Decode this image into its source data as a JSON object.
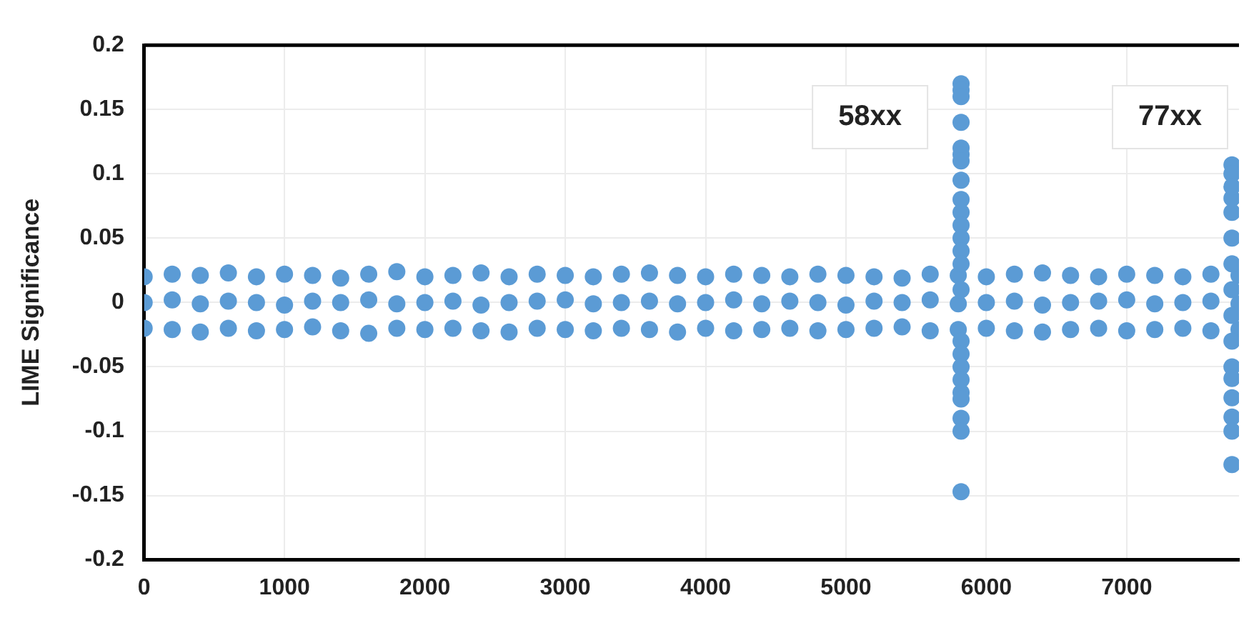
{
  "chart_data": {
    "type": "scatter",
    "ylabel": "LIME Significance",
    "color": "#5b9bd5",
    "marker": "circle",
    "grid": true,
    "legend": false,
    "xlim": [
      0,
      7800
    ],
    "xticks": [
      0,
      1000,
      2000,
      3000,
      4000,
      5000,
      6000,
      7000
    ],
    "ylim": [
      -0.2,
      0.2
    ],
    "yticks": [
      -0.2,
      -0.15,
      -0.1,
      -0.05,
      0,
      0.05,
      0.1,
      0.15,
      0.2
    ],
    "annotations": [
      "58xx",
      "77xx"
    ],
    "x": [
      0,
      200,
      400,
      600,
      800,
      1000,
      1200,
      1400,
      1600,
      1800,
      2000,
      2200,
      2400,
      2600,
      2800,
      3000,
      3200,
      3400,
      3600,
      3800,
      4000,
      4200,
      4400,
      4600,
      4800,
      5000,
      5200,
      5400,
      5600,
      5800,
      6000,
      6200,
      6400,
      6600,
      6800,
      7000,
      7200,
      7400,
      7600,
      7800,
      0,
      200,
      400,
      600,
      800,
      1000,
      1200,
      1400,
      1600,
      1800,
      2000,
      2200,
      2400,
      2600,
      2800,
      3000,
      3200,
      3400,
      3600,
      3800,
      4000,
      4200,
      4400,
      4600,
      4800,
      5000,
      5200,
      5400,
      5600,
      5800,
      6000,
      6200,
      6400,
      6600,
      6800,
      7000,
      7200,
      7400,
      7600,
      7800,
      0,
      200,
      400,
      600,
      800,
      1000,
      1200,
      1400,
      1600,
      1800,
      2000,
      2200,
      2400,
      2600,
      2800,
      3000,
      3200,
      3400,
      3600,
      3800,
      4000,
      4200,
      4400,
      4600,
      4800,
      5000,
      5200,
      5400,
      5600,
      5800,
      6000,
      6200,
      6400,
      6600,
      6800,
      7000,
      7200,
      7400,
      7600,
      7800,
      5820,
      5820,
      5820,
      5820,
      5820,
      5820,
      5820,
      5820,
      5820,
      5820,
      5820,
      5820,
      5820,
      5820,
      5820,
      5820,
      5820,
      5820,
      5820,
      5820,
      5820,
      5820,
      5820,
      5820,
      7750,
      7750,
      7750,
      7750,
      7750,
      7750,
      7750,
      7750,
      7750,
      7750,
      7750,
      7750,
      7750,
      7750,
      7750,
      7750
    ],
    "values": [
      0.02,
      0.022,
      0.021,
      0.023,
      0.02,
      0.022,
      0.021,
      0.019,
      0.022,
      0.024,
      0.02,
      0.021,
      0.023,
      0.02,
      0.022,
      0.021,
      0.02,
      0.022,
      0.023,
      0.021,
      0.02,
      0.022,
      0.021,
      0.02,
      0.022,
      0.021,
      0.02,
      0.019,
      0.022,
      0.021,
      0.02,
      0.022,
      0.023,
      0.021,
      0.02,
      0.022,
      0.021,
      0.02,
      0.022,
      0.021,
      0,
      0.002,
      -0.001,
      0.001,
      0,
      -0.002,
      0.001,
      0,
      0.002,
      -0.001,
      0,
      0.001,
      -0.002,
      0,
      0.001,
      0.002,
      -0.001,
      0,
      0.001,
      -0.001,
      0,
      0.002,
      -0.001,
      0.001,
      0,
      -0.002,
      0.001,
      0,
      0.002,
      -0.001,
      0,
      0.001,
      -0.002,
      0,
      0.001,
      0.002,
      -0.001,
      0,
      0.001,
      -0.001,
      -0.02,
      -0.021,
      -0.023,
      -0.02,
      -0.022,
      -0.021,
      -0.019,
      -0.022,
      -0.024,
      -0.02,
      -0.021,
      -0.02,
      -0.022,
      -0.023,
      -0.02,
      -0.021,
      -0.022,
      -0.02,
      -0.021,
      -0.023,
      -0.02,
      -0.022,
      -0.021,
      -0.02,
      -0.022,
      -0.021,
      -0.02,
      -0.019,
      -0.022,
      -0.021,
      -0.02,
      -0.022,
      -0.023,
      -0.021,
      -0.02,
      -0.022,
      -0.021,
      -0.02,
      -0.022,
      -0.021,
      0.17,
      0.165,
      0.16,
      0.14,
      0.12,
      0.115,
      0.11,
      0.095,
      0.08,
      0.07,
      0.06,
      0.05,
      0.04,
      0.03,
      -0.03,
      -0.04,
      -0.05,
      -0.06,
      -0.07,
      -0.075,
      -0.09,
      -0.1,
      -0.147,
      0.01,
      0.107,
      0.1,
      0.081,
      0.07,
      0.05,
      0.03,
      0.01,
      -0.01,
      -0.03,
      -0.05,
      -0.059,
      -0.074,
      -0.089,
      -0.1,
      -0.126,
      0.09
    ]
  }
}
